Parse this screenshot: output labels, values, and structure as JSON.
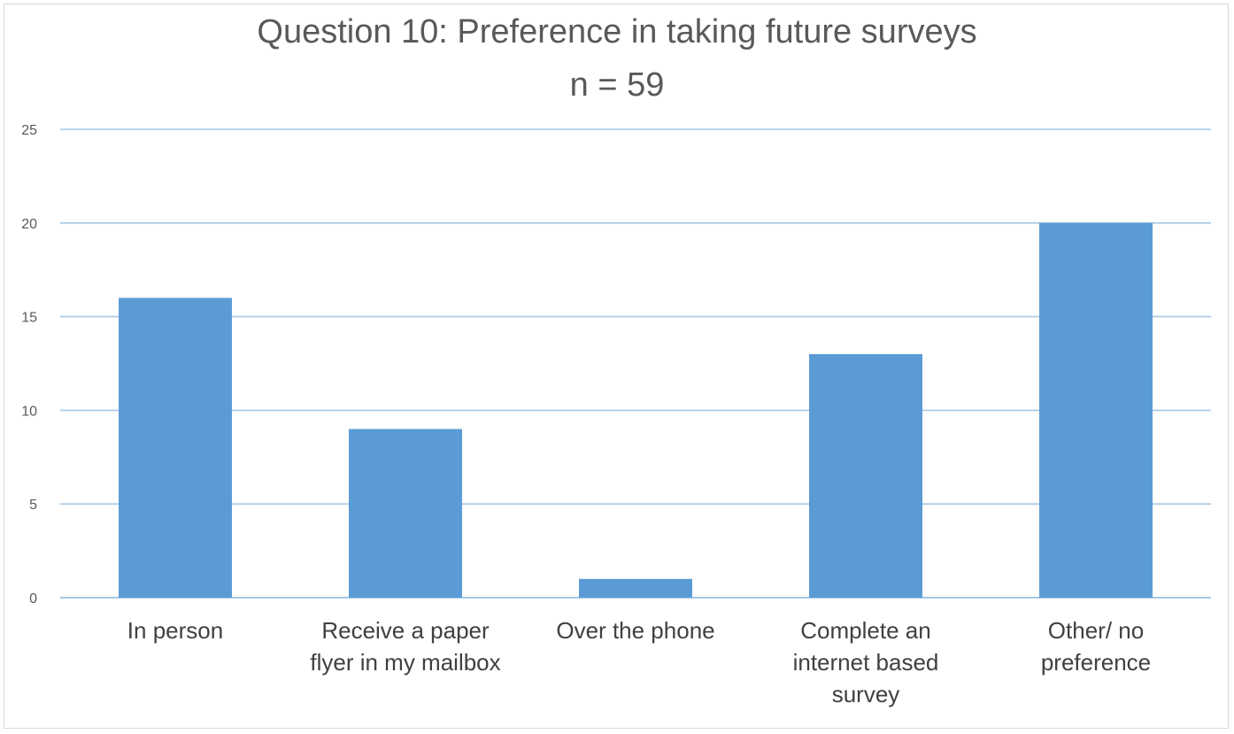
{
  "chart_data": {
    "type": "bar",
    "title": "Question 10: Preference in taking future surveys",
    "subtitle": "n = 59",
    "categories": [
      [
        "In person"
      ],
      [
        "Receive a paper",
        "flyer in my mailbox"
      ],
      [
        "Over the phone"
      ],
      [
        "Complete an",
        "internet based",
        "survey"
      ],
      [
        "Other/ no",
        "preference"
      ]
    ],
    "values": [
      16,
      9,
      1,
      13,
      20
    ],
    "yticks": [
      "0",
      "5",
      "10",
      "15",
      "20",
      "25"
    ],
    "ylim": [
      0,
      25
    ],
    "grid": true,
    "bar_color": "#5b9bd5",
    "grid_color": "#a6c8e6",
    "xlabel": "",
    "ylabel": ""
  }
}
